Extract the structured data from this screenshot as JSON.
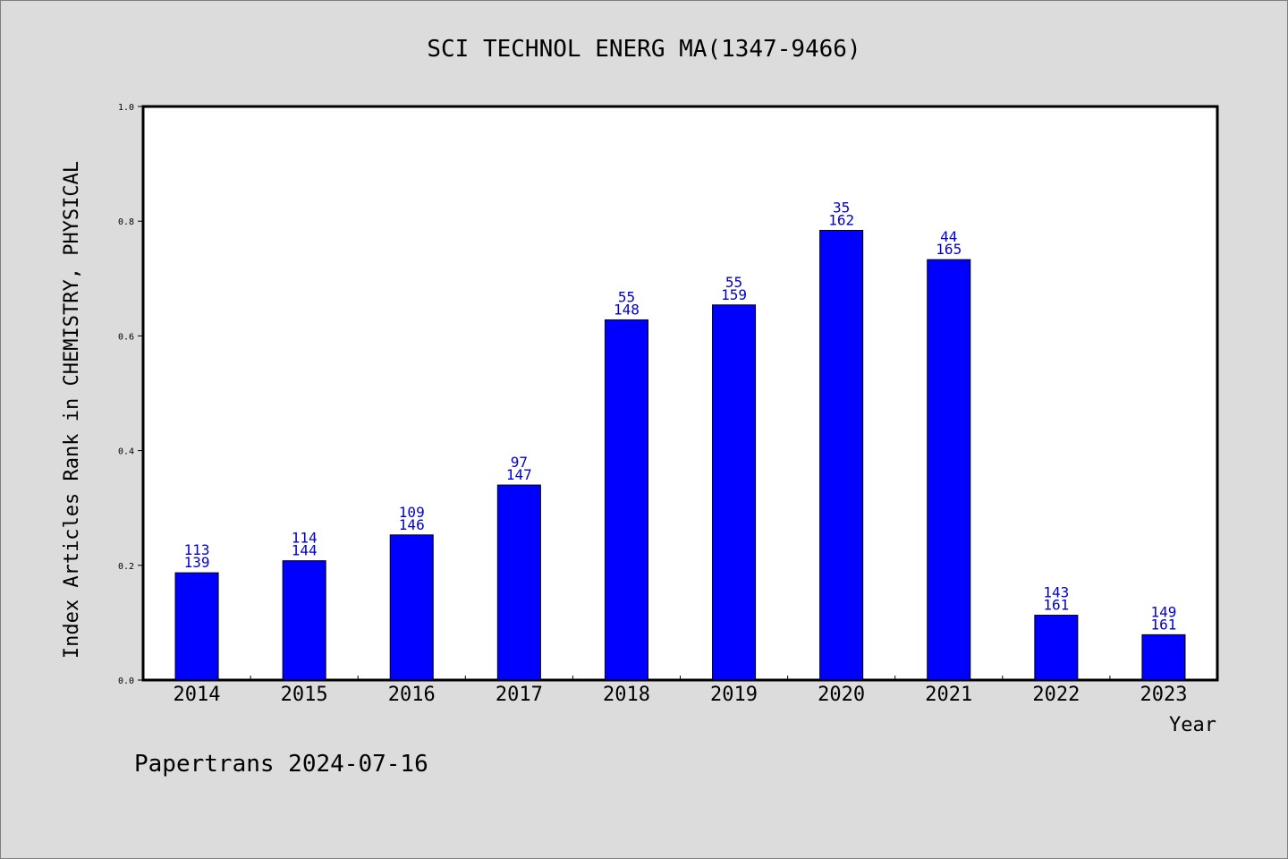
{
  "chart_data": {
    "type": "bar",
    "title": "SCI TECHNOL ENERG MA(1347-9466)",
    "xlabel": "Year",
    "ylabel": "Index Articles Rank in CHEMISTRY, PHYSICAL",
    "ylim": [
      0,
      1.0
    ],
    "yticks": [
      "0.0",
      "0.2",
      "0.4",
      "0.6",
      "0.8",
      "1.0"
    ],
    "grid": false,
    "categories": [
      "2014",
      "2015",
      "2016",
      "2017",
      "2018",
      "2019",
      "2020",
      "2021",
      "2022",
      "2023"
    ],
    "values": [
      0.187,
      0.208,
      0.253,
      0.34,
      0.628,
      0.654,
      0.784,
      0.733,
      0.113,
      0.079
    ],
    "labels_top": [
      "113",
      "114",
      "109",
      "97",
      "55",
      "55",
      "35",
      "44",
      "143",
      "149"
    ],
    "labels_bottom": [
      "139",
      "144",
      "146",
      "147",
      "148",
      "159",
      "162",
      "165",
      "161",
      "161"
    ],
    "bar_color": "#0000ff",
    "label_color": "#0000cc"
  },
  "footer": "Papertrans 2024-07-16"
}
